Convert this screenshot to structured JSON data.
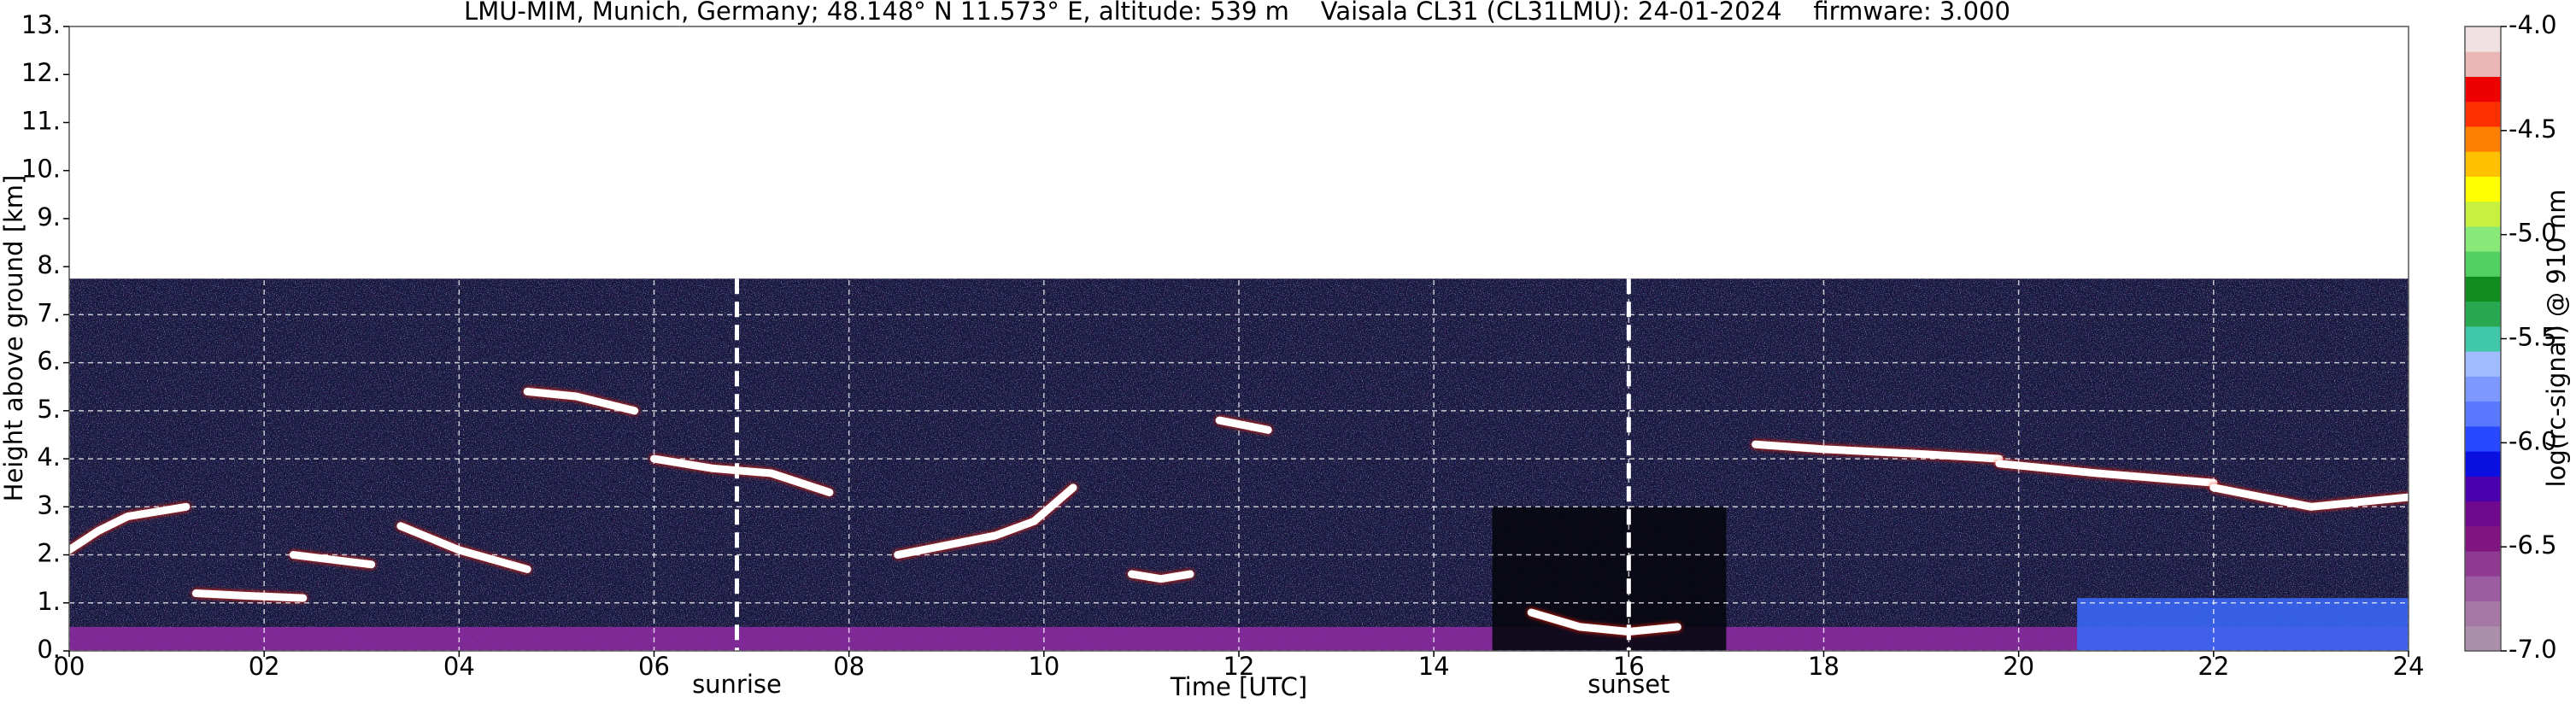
{
  "chart_data": {
    "type": "ceilometer",
    "title": "LMU-MIM, Munich, Germany; 48.148° N 11.573° E, altitude: 539 m    Vaisala CL31 (CL31LMU): 24-01-2024    firmware: 3.000",
    "x_label": "Time [UTC]",
    "y_label": "Height above ground [km]",
    "xlim": [
      0,
      24
    ],
    "xticks": [
      {
        "value": 0,
        "label": "00"
      },
      {
        "value": 2,
        "label": "02"
      },
      {
        "value": 4,
        "label": "04"
      },
      {
        "value": 6,
        "label": "06"
      },
      {
        "value": 8,
        "label": "08"
      },
      10,
      12,
      14,
      16,
      18,
      20,
      22,
      24
    ],
    "ylim": [
      0,
      13
    ],
    "yticks": [
      {
        "value": 0,
        "label": "0."
      },
      {
        "value": 1,
        "label": "1."
      },
      {
        "value": 2,
        "label": "2."
      },
      {
        "value": 3,
        "label": "3."
      },
      {
        "value": 4,
        "label": "4."
      },
      {
        "value": 5,
        "label": "5."
      },
      {
        "value": 6,
        "label": "6."
      },
      {
        "value": 7,
        "label": "7."
      },
      {
        "value": 8,
        "label": "8."
      },
      {
        "value": 9,
        "label": "9."
      },
      {
        "value": 10,
        "label": "10."
      },
      {
        "value": 11,
        "label": "11."
      },
      {
        "value": 12,
        "label": "12."
      },
      {
        "value": 13,
        "label": "13."
      }
    ],
    "grid": true,
    "signal_top": 7.75,
    "bands": [
      {
        "x": [
          0,
          24
        ],
        "y": [
          0,
          0.5
        ],
        "color": "#8a2aa0"
      },
      {
        "x": [
          20.6,
          24
        ],
        "y": [
          0,
          1.1
        ],
        "color": "#3a66f4"
      },
      {
        "x": [
          14.6,
          17
        ],
        "y": [
          0,
          3
        ],
        "color": "#07070f"
      }
    ],
    "layers": [
      {
        "x": [
          0,
          0.3,
          0.6,
          0.9,
          1.2
        ],
        "y": [
          2.1,
          2.5,
          2.8,
          2.9,
          3.0
        ]
      },
      {
        "x": [
          1.3,
          1.8,
          2.4
        ],
        "y": [
          1.2,
          1.15,
          1.1
        ]
      },
      {
        "x": [
          2.3,
          2.7,
          3.1
        ],
        "y": [
          2.0,
          1.9,
          1.8
        ]
      },
      {
        "x": [
          3.4,
          4.0,
          4.7
        ],
        "y": [
          2.6,
          2.1,
          1.7
        ]
      },
      {
        "x": [
          4.7,
          5.2,
          5.8
        ],
        "y": [
          5.4,
          5.3,
          5.0
        ]
      },
      {
        "x": [
          6.0,
          6.6,
          7.2,
          7.8
        ],
        "y": [
          4.0,
          3.8,
          3.7,
          3.3
        ]
      },
      {
        "x": [
          8.5,
          9.0,
          9.5,
          9.9,
          10.3
        ],
        "y": [
          2.0,
          2.2,
          2.4,
          2.7,
          3.4
        ]
      },
      {
        "x": [
          10.9,
          11.2,
          11.5
        ],
        "y": [
          1.6,
          1.5,
          1.6
        ]
      },
      {
        "x": [
          11.8,
          12.3
        ],
        "y": [
          4.8,
          4.6
        ]
      },
      {
        "x": [
          15.0,
          15.5,
          16.0,
          16.5
        ],
        "y": [
          0.8,
          0.5,
          0.4,
          0.5
        ]
      },
      {
        "x": [
          17.3,
          18.0,
          19.0,
          19.8
        ],
        "y": [
          4.3,
          4.2,
          4.1,
          4.0
        ]
      },
      {
        "x": [
          19.8,
          20.8,
          22.0
        ],
        "y": [
          3.9,
          3.7,
          3.5
        ]
      },
      {
        "x": [
          22.0,
          23.0,
          24.0
        ],
        "y": [
          3.4,
          3.0,
          3.2
        ]
      }
    ],
    "annotations": [
      {
        "x": 6.85,
        "label": "sunrise"
      },
      {
        "x": 16.0,
        "label": "sunset"
      }
    ],
    "colorbar": {
      "label": "log(rc-signal) @ 910 nm",
      "lim": [
        -7,
        -4
      ],
      "ticks": [
        {
          "value": -4,
          "label": "-4.0"
        },
        {
          "value": -4.5,
          "label": "-4.5"
        },
        {
          "value": -5,
          "label": "-5.0"
        },
        {
          "value": -5.5,
          "label": "-5.5"
        },
        {
          "value": -6,
          "label": "-6.0"
        },
        {
          "value": -6.5,
          "label": "-6.5"
        },
        {
          "value": -7,
          "label": "-7.0"
        }
      ],
      "colors": [
        "#ab8fab",
        "#a578a5",
        "#9d5c9f",
        "#8f3a92",
        "#80157f",
        "#6f0a8f",
        "#4b00b0",
        "#0a10e0",
        "#2848ff",
        "#5878ff",
        "#7d98ff",
        "#a0bcff",
        "#40c8a8",
        "#28a850",
        "#108c20",
        "#50d060",
        "#88e878",
        "#c8f040",
        "#ffff00",
        "#ffc000",
        "#ff8000",
        "#ff3000",
        "#ee0000",
        "#eab6b6",
        "#f0e0e2"
      ]
    }
  }
}
